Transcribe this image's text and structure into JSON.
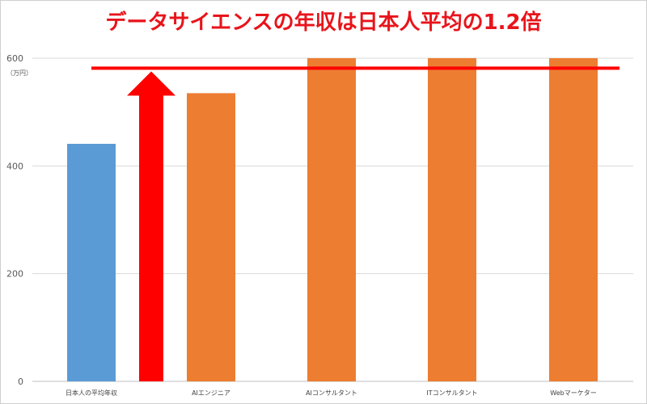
{
  "chart_data": {
    "type": "bar",
    "title": "データサイエンスの年収は日本人平均の1.2倍",
    "unit_label": "（万円）",
    "categories": [
      "日本人の平均年収",
      "AIエンジニア",
      "AIコンサルタント",
      "ITコンサルタント",
      "Webマーケター"
    ],
    "values": [
      441,
      535,
      600,
      600,
      600
    ],
    "bar_colors": [
      "#5b9bd5",
      "#ed7d31",
      "#ed7d31",
      "#ed7d31",
      "#ed7d31"
    ],
    "ylim": [
      0,
      600
    ],
    "yticks": [
      0,
      200,
      400,
      600
    ],
    "grid": true,
    "annotations": {
      "reference_line_value": 580,
      "reference_line_color": "#ff0000",
      "arrow_color": "#ff0000",
      "arrow_from": 0,
      "arrow_to": 580
    }
  }
}
